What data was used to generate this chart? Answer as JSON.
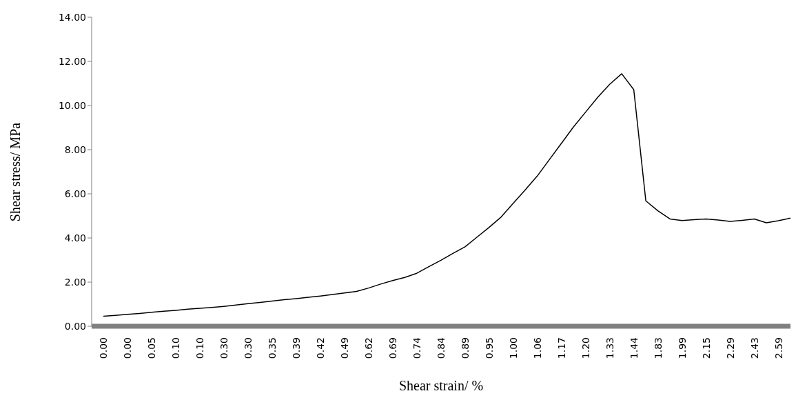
{
  "chart_data": {
    "type": "line",
    "xlabel": "Shear strain/ %",
    "ylabel": "Shear stress/ MPa",
    "categories": [
      "0.00",
      null,
      "0.00",
      null,
      "0.05",
      null,
      "0.10",
      null,
      "0.10",
      null,
      "0.30",
      null,
      "0.30",
      null,
      "0.35",
      null,
      "0.39",
      null,
      "0.42",
      null,
      "0.49",
      null,
      "0.62",
      null,
      "0.69",
      null,
      "0.74",
      null,
      "0.84",
      null,
      "0.89",
      null,
      "0.95",
      null,
      "1.00",
      null,
      "1.06",
      null,
      "1.17",
      null,
      "1.20",
      null,
      "1.33",
      null,
      "1.44",
      null,
      "1.83",
      null,
      "1.99",
      null,
      "2.15",
      null,
      "2.29",
      null,
      "2.43",
      null,
      "2.59",
      null
    ],
    "series": [
      {
        "color": "#000000",
        "values": [
          0.45,
          0.49,
          0.54,
          0.58,
          0.63,
          0.68,
          0.72,
          0.77,
          0.81,
          0.85,
          0.9,
          0.96,
          1.02,
          1.08,
          1.14,
          1.2,
          1.25,
          1.31,
          1.37,
          1.44,
          1.51,
          1.58,
          1.73,
          1.91,
          2.07,
          2.21,
          2.4,
          2.7,
          2.99,
          3.3,
          3.6,
          4.04,
          4.48,
          4.95,
          5.57,
          6.18,
          6.81,
          7.55,
          8.29,
          9.03,
          9.7,
          10.37,
          10.96,
          11.44,
          10.72,
          5.68,
          5.23,
          4.86,
          4.79,
          4.83,
          4.86,
          4.81,
          4.75,
          4.8,
          4.86,
          4.69,
          4.78,
          4.9
        ]
      }
    ],
    "ylim": [
      0,
      14
    ],
    "yticks": [
      {
        "value": 0,
        "label": "0.00"
      },
      {
        "value": 2,
        "label": "2.00"
      },
      {
        "value": 4,
        "label": "4.00"
      },
      {
        "value": 6,
        "label": "6.00"
      },
      {
        "value": 8,
        "label": "8.00"
      },
      {
        "value": 10,
        "label": "10.00"
      },
      {
        "value": 12,
        "label": "12.00"
      },
      {
        "value": 14,
        "label": "14.00"
      }
    ],
    "grid": false,
    "legend": false,
    "marker": "none",
    "line_style": "solid"
  }
}
